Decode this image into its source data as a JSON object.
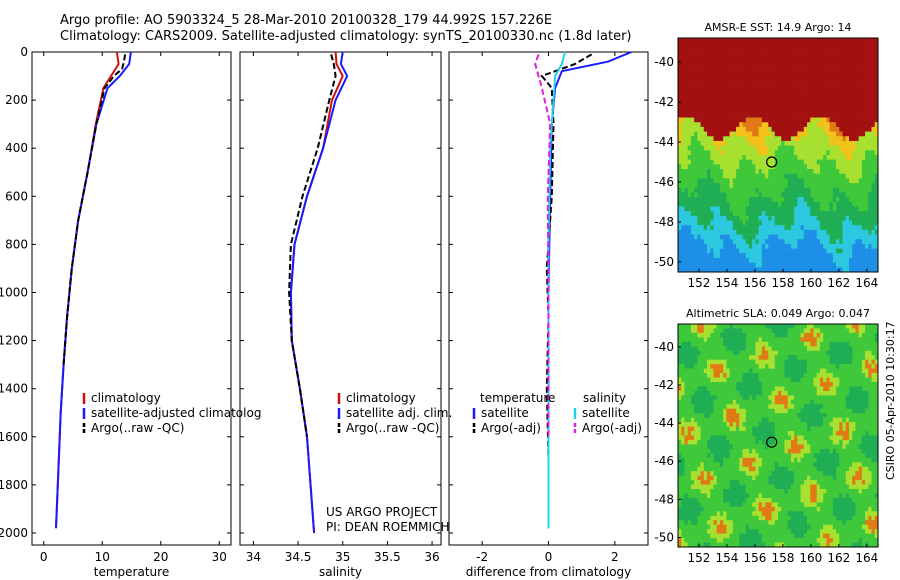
{
  "title": {
    "line1": "Argo profile: AO 5903324_5 28-Mar-2010 20100328_179 44.992S 157.226E",
    "line2": "Climatology: CARS2009. Satellite-adjusted climatology: synTS_20100330.nc (1.8d later)"
  },
  "credit": "CSIRO 05-Apr-2010 10:30:17",
  "colors": {
    "climatology": "#d01010",
    "satellite": "#1a1aff",
    "argo": "#000000",
    "sal_satellite": "#22d0f0",
    "sal_argo": "#e020e0"
  },
  "chart_data": [
    {
      "type": "line",
      "panel": "temperature",
      "xlabel": "temperature",
      "ylabel": "",
      "xlim": [
        -2,
        32
      ],
      "ylim": [
        2050,
        0
      ],
      "xticks": [
        0,
        10,
        20,
        30
      ],
      "yticks": [
        0,
        200,
        400,
        600,
        800,
        1000,
        1200,
        1400,
        1600,
        1800,
        2000
      ],
      "legend": [
        "climatology",
        "satellite-adjusted climatolog",
        "Argo(..raw -QC)"
      ],
      "series": [
        {
          "name": "climatology",
          "x": [
            12.5,
            12.8,
            11.5,
            10.2,
            8.9,
            7.5,
            5.9,
            4.8,
            4.0,
            3.4,
            2.9,
            2.4,
            2.1
          ],
          "y": [
            0,
            50,
            100,
            150,
            300,
            500,
            700,
            900,
            1100,
            1300,
            1500,
            1800,
            1980
          ]
        },
        {
          "name": "satellite-adjusted climatology",
          "x": [
            14.9,
            14.6,
            13.0,
            10.9,
            9.0,
            7.5,
            5.9,
            4.8,
            4.0,
            3.4,
            2.9,
            2.4,
            2.1
          ],
          "y": [
            0,
            50,
            100,
            150,
            300,
            500,
            700,
            900,
            1100,
            1300,
            1500,
            1800,
            1980
          ]
        },
        {
          "name": "Argo(..raw -QC)",
          "x": [
            13.9,
            13.7,
            13.4,
            12.0,
            10.4,
            9.0,
            7.5,
            5.9,
            4.8,
            4.0,
            3.4
          ],
          "y": [
            10,
            40,
            70,
            100,
            150,
            300,
            500,
            700,
            900,
            1100,
            1300
          ]
        }
      ]
    },
    {
      "type": "line",
      "panel": "salinity",
      "xlabel": "salinity",
      "ylabel": "",
      "xlim": [
        33.85,
        36.1
      ],
      "ylim": [
        2050,
        0
      ],
      "xticks": [
        34,
        34.5,
        35,
        35.5,
        36
      ],
      "xticklabels": [
        "34",
        "34.5",
        "35",
        "35.5",
        "36"
      ],
      "legend": [
        "climatology",
        "satellite adj. clim.",
        "Argo(..raw -QC)"
      ],
      "annotation": [
        "US ARGO PROJECT",
        "PI: DEAN ROEMMICH"
      ],
      "series": [
        {
          "name": "climatology",
          "x": [
            34.92,
            34.93,
            35.0,
            34.88,
            34.78,
            34.6,
            34.46,
            34.42,
            34.43,
            34.52,
            34.6,
            34.68
          ],
          "y": [
            0,
            50,
            100,
            200,
            400,
            600,
            800,
            1000,
            1200,
            1400,
            1600,
            2000
          ]
        },
        {
          "name": "satellite adj. clim.",
          "x": [
            35.0,
            34.98,
            35.05,
            34.92,
            34.78,
            34.6,
            34.46,
            34.42,
            34.43,
            34.52,
            34.6,
            34.68
          ],
          "y": [
            0,
            50,
            100,
            200,
            400,
            600,
            800,
            1000,
            1200,
            1400,
            1600,
            2000
          ]
        },
        {
          "name": "Argo(..raw -QC)",
          "x": [
            34.87,
            34.9,
            34.92,
            34.85,
            34.72,
            34.55,
            34.42,
            34.4,
            34.43,
            34.52,
            34.6
          ],
          "y": [
            10,
            50,
            100,
            200,
            400,
            600,
            800,
            1000,
            1200,
            1400,
            1600
          ]
        }
      ]
    },
    {
      "type": "line",
      "panel": "difference",
      "xlabel": "difference from climatology",
      "ylabel": "",
      "xlim": [
        -3,
        3
      ],
      "ylim": [
        2050,
        0
      ],
      "xticks": [
        -2,
        0,
        2
      ],
      "legend_headers": [
        "temperature",
        "salinity"
      ],
      "legend": [
        "satellite",
        "Argo(-adj)",
        "satellite",
        "Argo(-adj)"
      ],
      "series": [
        {
          "name": "satellite",
          "x": [
            2.5,
            1.8,
            0.4,
            0.2,
            0.1,
            0.05,
            0.0,
            0.0,
            0.0,
            0.0
          ],
          "y": [
            0,
            40,
            80,
            150,
            300,
            600,
            1000,
            1400,
            1800,
            1980
          ]
        },
        {
          "name": "Argo(-adj)",
          "x": [
            1.3,
            0.8,
            -0.2,
            0.1,
            0.15,
            0.1,
            -0.05,
            0.0,
            -0.05,
            0.0
          ],
          "y": [
            10,
            50,
            100,
            150,
            300,
            600,
            900,
            1100,
            1400,
            1700
          ]
        },
        {
          "name": "satellite",
          "x": [
            0.5,
            0.4,
            0.2,
            0.15,
            0.05,
            0.0,
            0.0,
            0.0
          ],
          "y": [
            0,
            50,
            100,
            200,
            400,
            800,
            1400,
            1980
          ]
        },
        {
          "name": "Argo(-adj)",
          "x": [
            -0.3,
            -0.4,
            -0.2,
            0.05,
            -0.02,
            0.0,
            0.0
          ],
          "y": [
            10,
            50,
            150,
            300,
            600,
            1000,
            1600
          ]
        }
      ]
    },
    {
      "type": "heatmap",
      "panel": "sst_map",
      "title": "AMSR-E SST: 14.9 Argo: 14",
      "xlim": [
        150.5,
        164.8
      ],
      "ylim": [
        -50.5,
        -38.8
      ],
      "xticks": [
        152,
        154,
        156,
        158,
        160,
        162,
        164
      ],
      "yticks": [
        -40,
        -42,
        -44,
        -46,
        -48,
        -50
      ],
      "marker": {
        "lon": 157.2,
        "lat": -45.0
      }
    },
    {
      "type": "heatmap",
      "panel": "sla_map",
      "title": "Altimetric SLA: 0.049 Argo: 0.047",
      "xlim": [
        150.5,
        164.8
      ],
      "ylim": [
        -50.5,
        -38.8
      ],
      "xticks": [
        152,
        154,
        156,
        158,
        160,
        162,
        164
      ],
      "yticks": [
        -40,
        -42,
        -44,
        -46,
        -48,
        -50
      ],
      "marker": {
        "lon": 157.2,
        "lat": -45.0
      }
    }
  ]
}
